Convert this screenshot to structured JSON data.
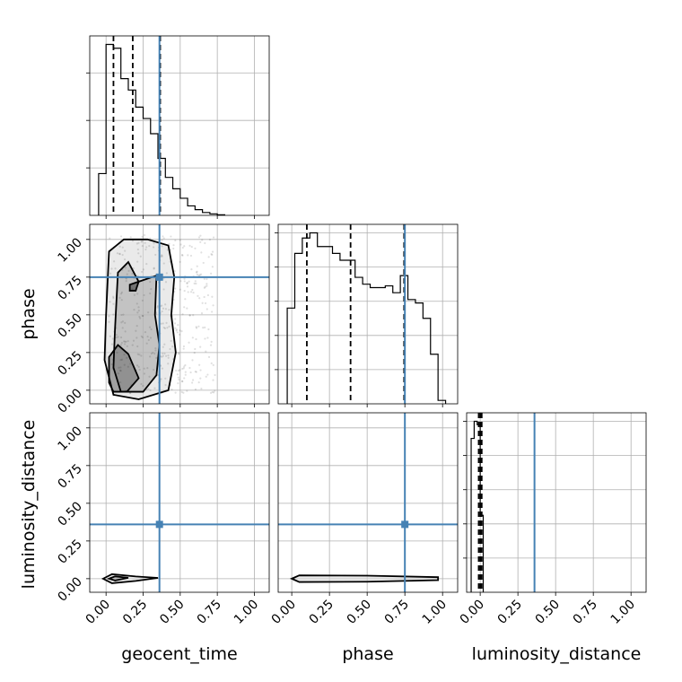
{
  "chart_data": {
    "type": "corner",
    "parameters": [
      "geocent_time",
      "phase",
      "luminosity_distance"
    ],
    "axis_labels": {
      "geocent_time": "geocent_time",
      "phase": "phase",
      "luminosity_distance": "luminosity_distance"
    },
    "ticks": [
      0.0,
      0.25,
      0.5,
      0.75,
      1.0
    ],
    "tick_labels": [
      "0.00",
      "0.25",
      "0.50",
      "0.75",
      "1.00"
    ],
    "ranges": {
      "geocent_time": [
        -0.11,
        1.1
      ],
      "phase": [
        -0.09,
        1.1
      ],
      "luminosity_distance": [
        -0.09,
        1.1
      ]
    },
    "truths": {
      "geocent_time": 0.36,
      "phase": 0.75,
      "luminosity_distance": 0.36
    },
    "quantiles": {
      "geocent_time": [
        0.05,
        0.18,
        0.365
      ],
      "phase": [
        0.1,
        0.39,
        0.745
      ],
      "luminosity_distance": [
        -0.01,
        0.0,
        0.01
      ]
    },
    "hist_1d": {
      "geocent_time": {
        "edges": [
          -0.05,
          0.0,
          0.05,
          0.1,
          0.15,
          0.2,
          0.25,
          0.3,
          0.35,
          0.4,
          0.45,
          0.5,
          0.55,
          0.6,
          0.65,
          0.7,
          0.75,
          0.8
        ],
        "counts": [
          0.22,
          0.9,
          0.88,
          0.72,
          0.66,
          0.57,
          0.51,
          0.43,
          0.3,
          0.2,
          0.14,
          0.09,
          0.05,
          0.03,
          0.015,
          0.008,
          0.003
        ]
      },
      "phase": {
        "edges": [
          -0.03,
          0.02,
          0.07,
          0.12,
          0.17,
          0.22,
          0.27,
          0.32,
          0.37,
          0.42,
          0.47,
          0.52,
          0.57,
          0.62,
          0.67,
          0.72,
          0.77,
          0.82,
          0.87,
          0.92,
          0.97,
          1.02
        ],
        "counts": [
          0.56,
          0.88,
          0.97,
          1.0,
          0.92,
          0.92,
          0.88,
          0.84,
          0.84,
          0.74,
          0.7,
          0.68,
          0.68,
          0.69,
          0.65,
          0.75,
          0.61,
          0.59,
          0.5,
          0.29,
          0.02
        ]
      },
      "luminosity_distance": {
        "edges": [
          -0.06,
          -0.04,
          -0.02,
          0.0,
          0.02
        ],
        "counts": [
          0.9,
          1.0,
          0.98,
          0.45
        ]
      }
    },
    "contours_2d": {
      "geocent_time_vs_phase": [
        [
          [
            0.0,
            0.5
          ],
          [
            0.02,
            0.92
          ],
          [
            0.12,
            1.0
          ],
          [
            0.28,
            1.0
          ],
          [
            0.42,
            0.96
          ],
          [
            0.46,
            0.75
          ],
          [
            0.44,
            0.5
          ],
          [
            0.47,
            0.25
          ],
          [
            0.42,
            0.0
          ],
          [
            0.22,
            -0.06
          ],
          [
            0.05,
            -0.03
          ],
          [
            -0.01,
            0.2
          ]
        ],
        [
          [
            0.05,
            0.15
          ],
          [
            0.06,
            0.4
          ],
          [
            0.08,
            0.78
          ],
          [
            0.15,
            0.85
          ],
          [
            0.22,
            0.72
          ],
          [
            0.34,
            0.76
          ],
          [
            0.33,
            0.5
          ],
          [
            0.36,
            0.3
          ],
          [
            0.34,
            0.1
          ],
          [
            0.25,
            -0.01
          ],
          [
            0.1,
            -0.01
          ]
        ],
        [
          [
            0.02,
            0.05
          ],
          [
            0.02,
            0.22
          ],
          [
            0.08,
            0.3
          ],
          [
            0.15,
            0.24
          ],
          [
            0.22,
            0.08
          ],
          [
            0.14,
            -0.01
          ],
          [
            0.05,
            -0.01
          ]
        ],
        [
          [
            0.16,
            0.7
          ],
          [
            0.22,
            0.72
          ],
          [
            0.2,
            0.66
          ],
          [
            0.16,
            0.66
          ]
        ]
      ],
      "geocent_time_vs_luminosity_distance": [
        [
          [
            -0.02,
            0.0
          ],
          [
            0.04,
            0.03
          ],
          [
            0.2,
            0.015
          ],
          [
            0.35,
            0.005
          ],
          [
            0.2,
            -0.015
          ],
          [
            0.04,
            -0.03
          ]
        ],
        [
          [
            0.02,
            0.0
          ],
          [
            0.06,
            0.015
          ],
          [
            0.15,
            0.006
          ],
          [
            0.06,
            -0.012
          ]
        ]
      ],
      "phase_vs_luminosity_distance": [
        [
          [
            0.0,
            0.0
          ],
          [
            0.05,
            0.022
          ],
          [
            0.5,
            0.02
          ],
          [
            0.97,
            0.01
          ],
          [
            0.97,
            -0.01
          ],
          [
            0.5,
            -0.02
          ],
          [
            0.05,
            -0.022
          ]
        ]
      ]
    }
  }
}
